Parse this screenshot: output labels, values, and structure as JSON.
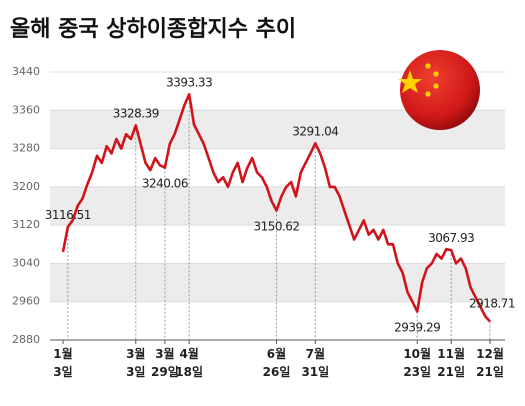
{
  "chart_data": {
    "type": "line",
    "title": "올해 중국 상하이종합지수 추이",
    "categories": [
      "1월 3일",
      null,
      null,
      null,
      null,
      null,
      null,
      null,
      null,
      null,
      null,
      null,
      null,
      null,
      null,
      "3월 3일",
      null,
      null,
      null,
      null,
      null,
      "3월 29일",
      null,
      null,
      null,
      null,
      "4월 18일",
      null,
      null,
      null,
      null,
      null,
      null,
      null,
      null,
      null,
      null,
      null,
      null,
      null,
      null,
      null,
      null,
      null,
      "6월 26일",
      null,
      null,
      null,
      null,
      null,
      null,
      null,
      "7월 31일",
      null,
      null,
      null,
      null,
      null,
      null,
      null,
      null,
      null,
      null,
      null,
      null,
      null,
      null,
      null,
      null,
      null,
      null,
      null,
      null,
      "10월 23일",
      null,
      null,
      null,
      null,
      null,
      null,
      "11월 21일",
      null,
      null,
      null,
      null,
      null,
      null,
      null,
      "12월 21일"
    ],
    "values": [
      3064,
      3116.51,
      3130,
      3160,
      3175,
      3205,
      3230,
      3265,
      3250,
      3285,
      3270,
      3300,
      3280,
      3310,
      3300,
      3328.39,
      3290,
      3250,
      3235,
      3260,
      3245,
      3240.06,
      3290,
      3310,
      3340,
      3370,
      3393.33,
      3330,
      3310,
      3290,
      3260,
      3230,
      3210,
      3220,
      3200,
      3230,
      3250,
      3210,
      3240,
      3260,
      3230,
      3220,
      3200,
      3170,
      3150.62,
      3180,
      3200,
      3210,
      3180,
      3230,
      3250,
      3270,
      3291.04,
      3270,
      3240,
      3200,
      3200,
      3180,
      3150,
      3120,
      3090,
      3110,
      3130,
      3100,
      3110,
      3090,
      3110,
      3080,
      3080,
      3040,
      3020,
      2980,
      2960,
      2939.29,
      3000,
      3030,
      3040,
      3060,
      3050,
      3070,
      3067.93,
      3040,
      3050,
      3030,
      2990,
      2970,
      2950,
      2930,
      2918.71
    ],
    "value_labels": [
      null,
      "3116.51",
      null,
      null,
      null,
      null,
      null,
      null,
      null,
      null,
      null,
      null,
      null,
      null,
      null,
      "3328.39",
      null,
      null,
      null,
      null,
      null,
      "3240.06",
      null,
      null,
      null,
      null,
      "3393.33",
      null,
      null,
      null,
      null,
      null,
      null,
      null,
      null,
      null,
      null,
      null,
      null,
      null,
      null,
      null,
      null,
      null,
      "3150.62",
      null,
      null,
      null,
      null,
      null,
      null,
      null,
      "3291.04",
      null,
      null,
      null,
      null,
      null,
      null,
      null,
      null,
      null,
      null,
      null,
      null,
      null,
      null,
      null,
      null,
      null,
      null,
      null,
      null,
      "2939.29",
      null,
      null,
      null,
      null,
      null,
      null,
      "3067.93",
      null,
      null,
      null,
      null,
      null,
      null,
      null,
      "2918.71"
    ],
    "color": "#d0141a",
    "ylim": [
      2880,
      3440
    ],
    "yticks": [
      2880,
      2960,
      3040,
      3120,
      3200,
      3280,
      3360,
      3440
    ],
    "grid": true
  }
}
